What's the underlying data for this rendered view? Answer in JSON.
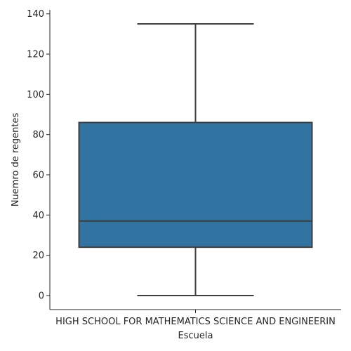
{
  "chart_data": {
    "type": "box",
    "title": "",
    "xlabel": "Escuela",
    "ylabel": "Nuemro de regentes",
    "categories": [
      "HIGH SCHOOL FOR MATHEMATICS SCIENCE AND ENGINEERIN"
    ],
    "boxes": [
      {
        "category": "HIGH SCHOOL FOR MATHEMATICS SCIENCE AND ENGINEERIN",
        "min": 0,
        "q1": 24,
        "median": 37,
        "q3": 86,
        "max": 135
      }
    ],
    "ylim": [
      -7,
      142
    ],
    "yticks": [
      0,
      20,
      40,
      60,
      80,
      100,
      120,
      140
    ],
    "grid": false,
    "colors": {
      "box": "#3274a1",
      "line": "#3f3f3f",
      "axis": "#262626"
    }
  }
}
